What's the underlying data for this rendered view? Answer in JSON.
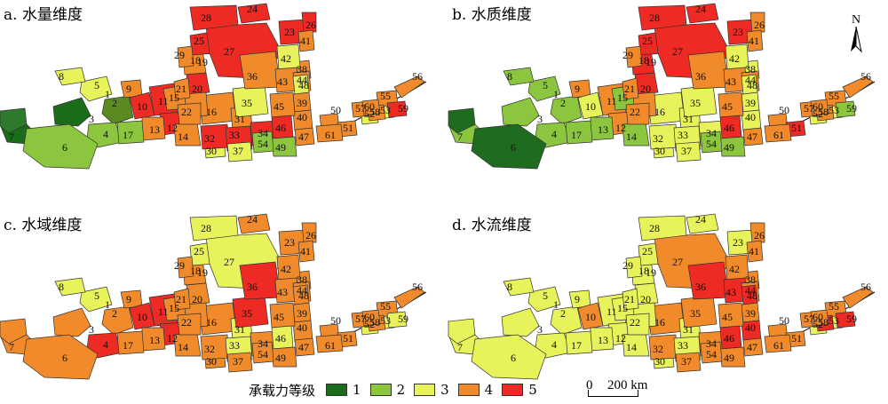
{
  "panels": [
    {
      "label": "a. 水量维度",
      "colors": {
        "1": "#1a6b1a",
        "2": "#5a8a20",
        "3": "#1a6b1a",
        "4": "#8cc63f",
        "5": "#e8f25a",
        "6": "#8cc63f",
        "7": "#2d7a2d",
        "8": "#e8f25a",
        "9": "#f08a2a",
        "10": "#ee2a24",
        "11": "#ee2a24",
        "12": "#ee2a24",
        "13": "#f08a2a",
        "14": "#f08a2a",
        "15": "#f08a2a",
        "16": "#f08a2a",
        "17": "#8cc63f",
        "18": "#f08a2a",
        "19": "#ee2a24",
        "20": "#f08a2a",
        "21": "#f08a2a",
        "22": "#f08a2a",
        "23": "#ee2a24",
        "24": "#ee2a24",
        "25": "#ee2a24",
        "26": "#ee2a24",
        "27": "#ee2a24",
        "28": "#ee2a24",
        "29": "#f08a2a",
        "30": "#e8f25a",
        "31": "#f08a2a",
        "32": "#ee2a24",
        "33": "#ee2a24",
        "34": "#ee2a24",
        "35": "#e8f25a",
        "36": "#f08a2a",
        "37": "#e8f25a",
        "38": "#f08a2a",
        "39": "#f08a2a",
        "40": "#f08a2a",
        "41": "#f08a2a",
        "42": "#e8f25a",
        "43": "#f08a2a",
        "44": "#f08a2a",
        "45": "#f08a2a",
        "46": "#ee2a24",
        "47": "#f08a2a",
        "48": "#e8f25a",
        "49": "#8cc63f",
        "50": "#f08a2a",
        "51": "#f08a2a",
        "52": "#e8f25a",
        "53": "#e8f25a",
        "54": "#8cc63f",
        "55": "#f08a2a",
        "56": "#f08a2a",
        "57": "#f08a2a",
        "58": "#f08a2a",
        "59": "#ee2a24",
        "60": "#f08a2a",
        "61": "#f08a2a"
      }
    },
    {
      "label": "b. 水质维度",
      "colors": {
        "1": "#8cc63f",
        "2": "#8cc63f",
        "3": "#8cc63f",
        "4": "#8cc63f",
        "5": "#8cc63f",
        "6": "#1f6b1f",
        "7": "#1f6b1f",
        "8": "#8cc63f",
        "9": "#f08a2a",
        "10": "#e8f25a",
        "11": "#f08a2a",
        "12": "#f08a2a",
        "13": "#8cc63f",
        "14": "#8cc63f",
        "15": "#8cc63f",
        "16": "#e8f25a",
        "17": "#8cc63f",
        "18": "#ee2a24",
        "19": "#ee2a24",
        "20": "#f08a2a",
        "21": "#f08a2a",
        "22": "#f08a2a",
        "23": "#ee2a24",
        "24": "#ee2a24",
        "25": "#ee2a24",
        "26": "#f08a2a",
        "27": "#ee2a24",
        "28": "#ee2a24",
        "29": "#f08a2a",
        "30": "#e8f25a",
        "31": "#e8f25a",
        "32": "#e8f25a",
        "33": "#e8f25a",
        "34": "#e8f25a",
        "35": "#e8f25a",
        "36": "#f08a2a",
        "37": "#e8f25a",
        "38": "#e8f25a",
        "39": "#e8f25a",
        "40": "#e8f25a",
        "41": "#f08a2a",
        "42": "#e8f25a",
        "43": "#f08a2a",
        "44": "#f08a2a",
        "45": "#f08a2a",
        "46": "#ee2a24",
        "47": "#f08a2a",
        "48": "#e8f25a",
        "49": "#8cc63f",
        "50": "#f08a2a",
        "51": "#ee2a24",
        "52": "#e8f25a",
        "53": "#e8f25a",
        "54": "#8cc63f",
        "55": "#f08a2a",
        "56": "#f08a2a",
        "57": "#f08a2a",
        "58": "#f08a2a",
        "59": "#8cc63f",
        "60": "#f08a2a",
        "61": "#f08a2a"
      }
    },
    {
      "label": "c. 水域维度",
      "colors": {
        "1": "#f08a2a",
        "2": "#f08a2a",
        "3": "#f08a2a",
        "4": "#ee2a24",
        "5": "#e8f25a",
        "6": "#f08a2a",
        "7": "#f08a2a",
        "8": "#e8f25a",
        "9": "#f08a2a",
        "10": "#ee2a24",
        "11": "#ee2a24",
        "12": "#ee2a24",
        "13": "#f08a2a",
        "14": "#f08a2a",
        "15": "#f08a2a",
        "16": "#f08a2a",
        "17": "#f08a2a",
        "18": "#f08a2a",
        "19": "#f08a2a",
        "20": "#f08a2a",
        "21": "#f08a2a",
        "22": "#f08a2a",
        "23": "#f08a2a",
        "24": "#f08a2a",
        "25": "#e8f25a",
        "26": "#f08a2a",
        "27": "#e8f25a",
        "28": "#e8f25a",
        "29": "#f08a2a",
        "30": "#f08a2a",
        "31": "#e8f25a",
        "32": "#f08a2a",
        "33": "#e8f25a",
        "34": "#f08a2a",
        "35": "#ee2a24",
        "36": "#ee2a24",
        "37": "#f08a2a",
        "38": "#f08a2a",
        "39": "#f08a2a",
        "40": "#f08a2a",
        "41": "#f08a2a",
        "42": "#f08a2a",
        "43": "#f08a2a",
        "44": "#f08a2a",
        "45": "#f08a2a",
        "46": "#e8f25a",
        "47": "#f08a2a",
        "48": "#f08a2a",
        "49": "#f08a2a",
        "50": "#f08a2a",
        "51": "#f08a2a",
        "52": "#e8f25a",
        "53": "#e8f25a",
        "54": "#f08a2a",
        "55": "#f08a2a",
        "56": "#f08a2a",
        "57": "#f08a2a",
        "58": "#f08a2a",
        "59": "#e8f25a",
        "60": "#f08a2a",
        "61": "#f08a2a"
      }
    },
    {
      "label": "d. 水流维度",
      "colors": {
        "1": "#e8f25a",
        "2": "#e8f25a",
        "3": "#e8f25a",
        "4": "#e8f25a",
        "5": "#e8f25a",
        "6": "#e8f25a",
        "7": "#e8f25a",
        "8": "#e8f25a",
        "9": "#e8f25a",
        "10": "#f08a2a",
        "11": "#e8f25a",
        "12": "#e8f25a",
        "13": "#e8f25a",
        "14": "#e8f25a",
        "15": "#e8f25a",
        "16": "#f08a2a",
        "17": "#e8f25a",
        "18": "#e8f25a",
        "19": "#e8f25a",
        "20": "#e8f25a",
        "21": "#e8f25a",
        "22": "#e8f25a",
        "23": "#e8f25a",
        "24": "#e8f25a",
        "25": "#e8f25a",
        "26": "#f08a2a",
        "27": "#f08a2a",
        "28": "#e8f25a",
        "29": "#e8f25a",
        "30": "#e8f25a",
        "31": "#e8f25a",
        "32": "#f08a2a",
        "33": "#e8f25a",
        "34": "#f08a2a",
        "35": "#f08a2a",
        "36": "#ee2a24",
        "37": "#f08a2a",
        "38": "#f08a2a",
        "39": "#f08a2a",
        "40": "#ee2a24",
        "41": "#f08a2a",
        "42": "#f08a2a",
        "43": "#ee2a24",
        "44": "#f08a2a",
        "45": "#f08a2a",
        "46": "#ee2a24",
        "47": "#f08a2a",
        "48": "#ee2a24",
        "49": "#f08a2a",
        "50": "#f08a2a",
        "51": "#f08a2a",
        "52": "#e8f25a",
        "53": "#e8f25a",
        "54": "#f08a2a",
        "55": "#f08a2a",
        "56": "#f08a2a",
        "57": "#f08a2a",
        "58": "#ee2a24",
        "59": "#ee2a24",
        "60": "#f08a2a",
        "61": "#f08a2a"
      }
    }
  ],
  "legend": {
    "title": "承载力等级",
    "items": [
      {
        "label": "1",
        "color": "#1a6b1a"
      },
      {
        "label": "2",
        "color": "#8cc63f"
      },
      {
        "label": "3",
        "color": "#e8f25a"
      },
      {
        "label": "4",
        "color": "#f08a2a"
      },
      {
        "label": "5",
        "color": "#ee2a24"
      }
    ]
  },
  "scalebar": {
    "left_label": "0",
    "right_label": "200 km"
  },
  "north_arrow": {
    "label": "N"
  }
}
